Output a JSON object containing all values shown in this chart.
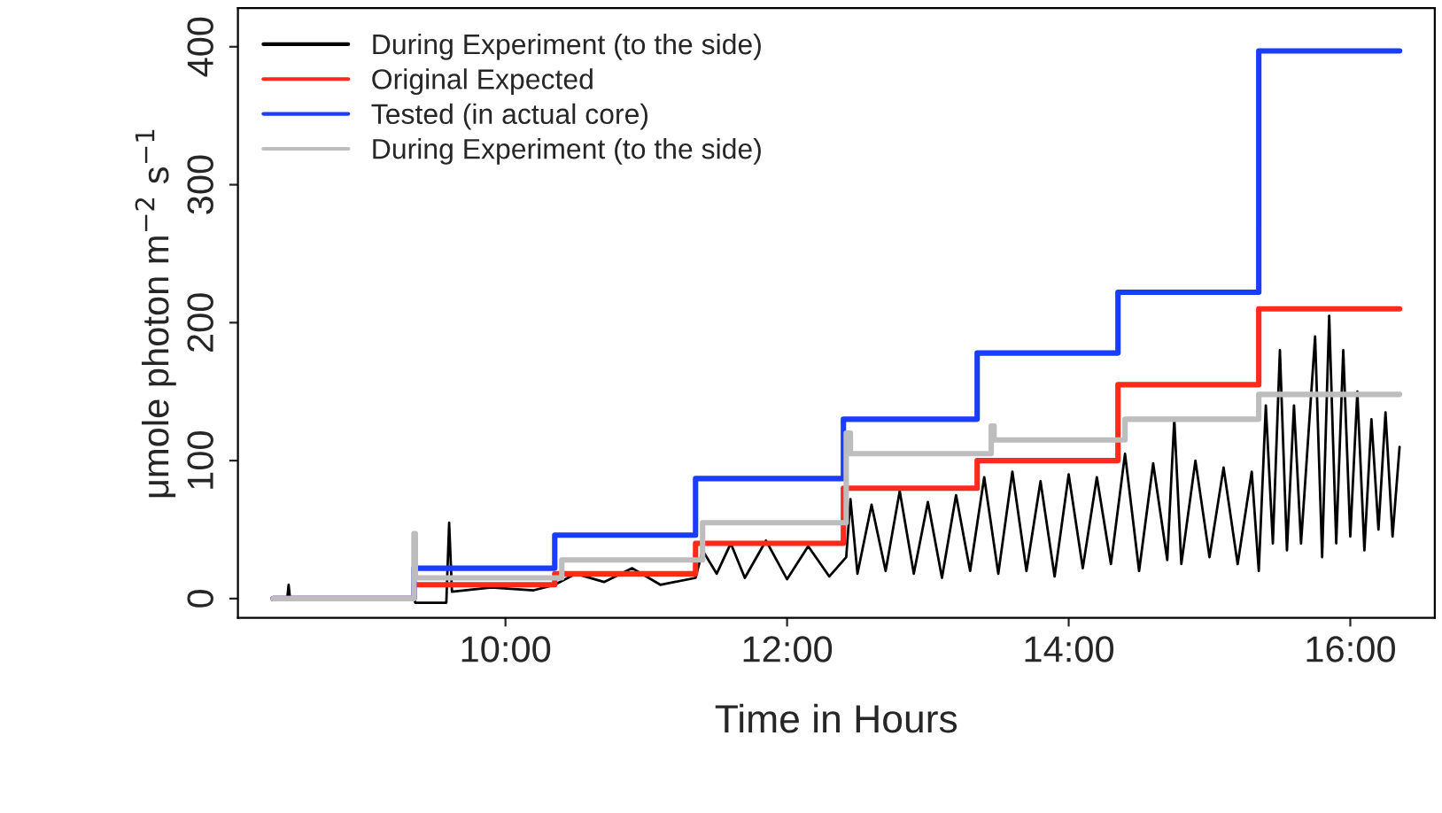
{
  "chart_data": {
    "type": "line",
    "xlabel": "Time in Hours",
    "ylabel": "μmole photon m$^{−2}$ s$^{−1}$",
    "xlim": [
      8.1,
      16.6
    ],
    "ylim": [
      -14,
      428
    ],
    "xticks": [
      {
        "value": 10,
        "label": "10:00"
      },
      {
        "value": 12,
        "label": "12:00"
      },
      {
        "value": 14,
        "label": "14:00"
      },
      {
        "value": 16,
        "label": "16:00"
      }
    ],
    "yticks": [
      0,
      100,
      200,
      300,
      400
    ],
    "grid": false,
    "legend": "top left",
    "series": [
      {
        "name": "During Experiment (to the side)",
        "color": "#000000",
        "x": [
          8.35,
          8.45,
          8.46,
          8.47,
          9.35,
          9.36,
          9.58,
          9.6,
          9.62,
          9.9,
          10.2,
          10.35,
          10.5,
          10.7,
          10.9,
          11.1,
          11.35,
          11.4,
          11.5,
          11.6,
          11.7,
          11.85,
          12.0,
          12.15,
          12.3,
          12.42,
          12.45,
          12.5,
          12.6,
          12.7,
          12.8,
          12.9,
          13.0,
          13.1,
          13.2,
          13.3,
          13.4,
          13.5,
          13.6,
          13.7,
          13.8,
          13.9,
          14.0,
          14.1,
          14.2,
          14.3,
          14.4,
          14.5,
          14.6,
          14.7,
          14.75,
          14.8,
          14.9,
          15.0,
          15.1,
          15.2,
          15.3,
          15.35,
          15.4,
          15.45,
          15.5,
          15.55,
          15.6,
          15.65,
          15.75,
          15.8,
          15.85,
          15.9,
          15.95,
          16.0,
          16.05,
          16.1,
          16.15,
          16.2,
          16.25,
          16.3,
          16.35
        ],
        "values": [
          0,
          0,
          10,
          0,
          0,
          -3,
          -3,
          55,
          5,
          8,
          6,
          10,
          18,
          12,
          22,
          10,
          15,
          35,
          18,
          40,
          15,
          42,
          14,
          38,
          16,
          30,
          72,
          18,
          68,
          20,
          78,
          18,
          70,
          15,
          75,
          20,
          88,
          18,
          92,
          20,
          85,
          16,
          90,
          22,
          88,
          25,
          105,
          20,
          98,
          28,
          130,
          25,
          100,
          30,
          95,
          25,
          92,
          20,
          140,
          40,
          180,
          35,
          140,
          40,
          190,
          30,
          205,
          40,
          180,
          45,
          150,
          35,
          130,
          50,
          135,
          45,
          110
        ]
      },
      {
        "name": "Original Expected",
        "color": "#ff2a1a",
        "type": "step",
        "x": [
          8.35,
          9.35,
          10.35,
          11.35,
          12.4,
          13.35,
          14.35,
          15.35,
          16.35
        ],
        "values": [
          0,
          10,
          18,
          40,
          80,
          100,
          155,
          210,
          210
        ]
      },
      {
        "name": "Tested (in actual core)",
        "color": "#1a3cff",
        "type": "step",
        "x": [
          8.35,
          9.35,
          10.35,
          11.35,
          12.4,
          13.35,
          14.35,
          15.35,
          16.35
        ],
        "values": [
          0,
          22,
          46,
          87,
          130,
          178,
          222,
          397,
          397
        ]
      },
      {
        "name": "During Experiment (to the side)",
        "color": "#bdbdbd",
        "type": "step",
        "x": [
          8.35,
          9.35,
          9.36,
          9.37,
          10.4,
          11.4,
          12.42,
          12.45,
          12.47,
          13.45,
          13.47,
          13.5,
          14.4,
          15.35,
          15.37,
          16.35
        ],
        "values": [
          0,
          47,
          15,
          15,
          28,
          55,
          120,
          105,
          105,
          125,
          115,
          115,
          130,
          148,
          148,
          148
        ]
      }
    ]
  }
}
